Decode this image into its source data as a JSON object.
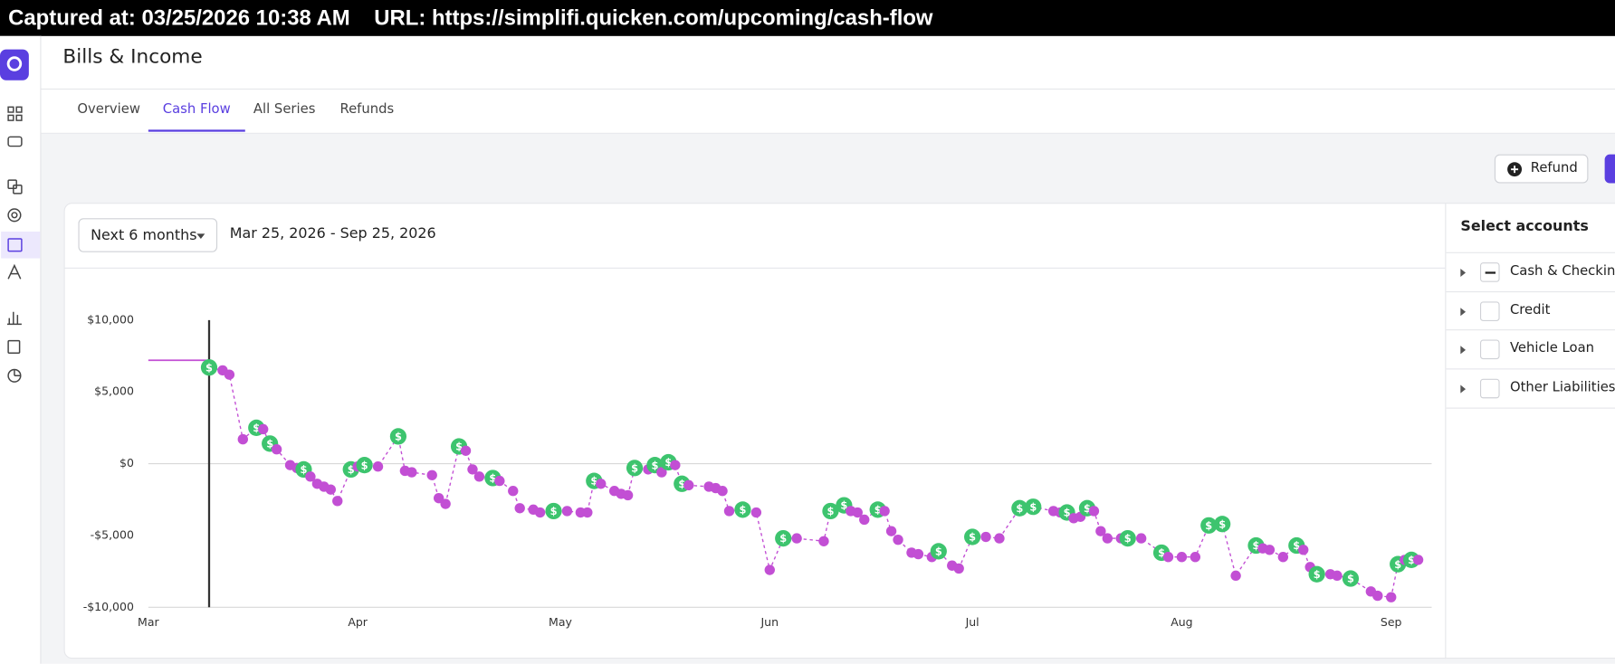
{
  "capture": {
    "captured_at": "Captured at: 03/25/2026 10:38 AM",
    "url": "URL: https://simplifi.quicken.com/upcoming/cash-flow"
  },
  "page": {
    "title": "Bills & Income",
    "tabs": [
      "Overview",
      "Cash Flow",
      "All Series",
      "Refunds"
    ],
    "active_tab": 1
  },
  "refund_button": "Refund",
  "range_select": "Next 6 months",
  "date_range": "Mar 25, 2026 - Sep 25, 2026",
  "accounts": {
    "title": "Select accounts",
    "items": [
      "Cash & Checking",
      "Credit",
      "Vehicle Loan",
      "Other Liabilities"
    ],
    "partially_selected": [
      true,
      false,
      false,
      false
    ]
  },
  "chart_data": {
    "type": "line",
    "x": [
      9,
      11,
      12,
      14,
      16,
      17,
      18,
      19,
      21,
      22,
      23,
      24,
      25,
      26,
      27,
      28,
      30,
      31,
      32,
      34,
      37,
      38,
      39,
      42,
      43,
      44,
      46,
      47,
      48,
      49,
      51,
      52,
      54,
      55,
      57,
      58,
      60,
      62,
      64,
      65,
      66,
      67,
      69,
      70,
      71,
      72,
      74,
      75,
      76,
      77,
      78,
      79,
      80,
      83,
      84,
      85,
      86,
      88,
      90,
      92,
      94,
      96,
      100,
      101,
      103,
      104,
      105,
      106,
      108,
      109,
      110,
      111,
      113,
      114,
      116,
      117,
      119,
      120,
      122,
      124,
      126,
      129,
      131,
      134,
      135,
      136,
      137,
      138,
      139,
      140,
      141,
      142,
      144,
      145,
      147,
      150,
      151,
      153,
      155,
      157,
      159,
      161,
      164,
      165,
      166,
      168,
      170,
      171,
      172,
      173,
      175,
      176,
      178,
      181,
      182,
      184,
      185,
      186,
      187,
      188
    ],
    "values": [
      6700,
      6500,
      6200,
      1700,
      2500,
      2400,
      1400,
      1000,
      -100,
      -300,
      -400,
      -900,
      -1400,
      -1600,
      -1800,
      -2600,
      -400,
      -200,
      -100,
      -200,
      1900,
      -500,
      -600,
      -800,
      -2400,
      -2800,
      1200,
      900,
      -400,
      -900,
      -1000,
      -1200,
      -1900,
      -3100,
      -3200,
      -3400,
      -3300,
      -3300,
      -3400,
      -3400,
      -1200,
      -1400,
      -1900,
      -2100,
      -2200,
      -300,
      -400,
      -100,
      -600,
      100,
      -100,
      -1400,
      -1500,
      -1600,
      -1700,
      -1900,
      -3300,
      -3200,
      -3400,
      -7400,
      -5200,
      -5200,
      -5400,
      -3300,
      -2900,
      -3300,
      -3400,
      -3900,
      -3200,
      -3300,
      -4700,
      -5300,
      -6200,
      -6300,
      -6500,
      -6100,
      -7100,
      -7300,
      -5100,
      -5100,
      -5200,
      -3100,
      -3000,
      -3300,
      -3400,
      -3400,
      -3800,
      -3700,
      -3100,
      -3300,
      -4700,
      -5200,
      -5200,
      -5200,
      -5200,
      -6200,
      -6500,
      -6500,
      -6500,
      -4300,
      -4200,
      -7800,
      -5700,
      -5900,
      -6000,
      -6500,
      -5700,
      -6000,
      -7200,
      -7700,
      -7700,
      -7800,
      -8000,
      -8900,
      -9200,
      -9300,
      -7000,
      -6700,
      -6700,
      -6700
    ],
    "income_points": [
      0,
      4,
      6,
      10,
      16,
      18,
      20,
      26,
      30,
      36,
      40,
      45,
      47,
      49,
      51,
      57,
      60,
      63,
      64,
      68,
      75,
      78,
      81,
      82,
      85,
      88,
      93,
      95,
      99,
      100,
      102,
      106,
      109,
      112,
      116,
      118
    ],
    "income_symbol": "$",
    "income_color": "#3dc46e",
    "bill_color": "#c24fd4",
    "history": {
      "x": [
        0,
        9
      ],
      "values": [
        7200,
        7200
      ]
    },
    "today_x": 9,
    "xlim": [
      0,
      190
    ],
    "xticks": [
      {
        "value": 0,
        "label": "Mar"
      },
      {
        "value": 31,
        "label": "Apr"
      },
      {
        "value": 61,
        "label": "May"
      },
      {
        "value": 92,
        "label": "Jun"
      },
      {
        "value": 122,
        "label": "Jul"
      },
      {
        "value": 153,
        "label": "Aug"
      },
      {
        "value": 184,
        "label": "Sep"
      }
    ],
    "ylim": [
      -10000,
      10000
    ],
    "yticks": [
      {
        "value": 10000,
        "label": "$10,000"
      },
      {
        "value": 5000,
        "label": "$5,000"
      },
      {
        "value": 0,
        "label": "$0"
      },
      {
        "value": -5000,
        "label": "-$5,000"
      },
      {
        "value": -10000,
        "label": "-$10,000"
      }
    ],
    "zero_line": true
  }
}
